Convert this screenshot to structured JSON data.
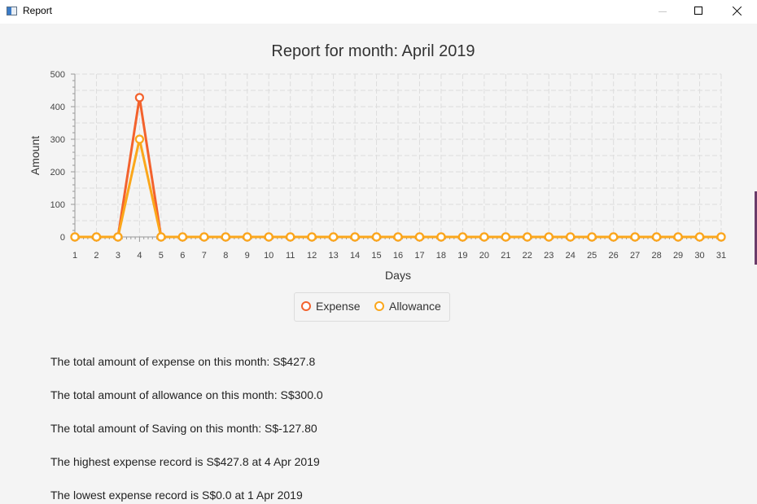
{
  "window": {
    "title": "Report",
    "icon": "app-window-icon",
    "controls": [
      "minimize-icon",
      "maximize-icon",
      "close-icon"
    ]
  },
  "chart_data": {
    "type": "line",
    "title": "Report for month: April 2019",
    "xlabel": "Days",
    "ylabel": "Amount",
    "x": [
      1,
      2,
      3,
      4,
      5,
      6,
      7,
      8,
      9,
      10,
      11,
      12,
      13,
      14,
      15,
      16,
      17,
      18,
      19,
      20,
      21,
      22,
      23,
      24,
      25,
      26,
      27,
      28,
      29,
      30,
      31
    ],
    "xlim": [
      1,
      31
    ],
    "ylim": [
      0,
      500
    ],
    "yticks": [
      0,
      100,
      200,
      300,
      400,
      500
    ],
    "grid": true,
    "legend_position": "bottom",
    "series": [
      {
        "name": "Expense",
        "color": "#f3622d",
        "values": [
          0,
          0,
          0,
          427.8,
          0,
          0,
          0,
          0,
          0,
          0,
          0,
          0,
          0,
          0,
          0,
          0,
          0,
          0,
          0,
          0,
          0,
          0,
          0,
          0,
          0,
          0,
          0,
          0,
          0,
          0,
          0
        ]
      },
      {
        "name": "Allowance",
        "color": "#fba71b",
        "values": [
          0,
          0,
          0,
          300.0,
          0,
          0,
          0,
          0,
          0,
          0,
          0,
          0,
          0,
          0,
          0,
          0,
          0,
          0,
          0,
          0,
          0,
          0,
          0,
          0,
          0,
          0,
          0,
          0,
          0,
          0,
          0
        ]
      }
    ]
  },
  "summary": {
    "total_expense": "The total amount of expense on this month: S$427.8",
    "total_allowance": "The total amount of allowance on this month: S$300.0",
    "total_saving": "The total amount of Saving on this month: S$-127.80",
    "highest_expense": "The highest expense record is S$427.8 at 4 Apr 2019",
    "lowest_expense": "The lowest expense record is S$0.0 at 1 Apr 2019"
  }
}
